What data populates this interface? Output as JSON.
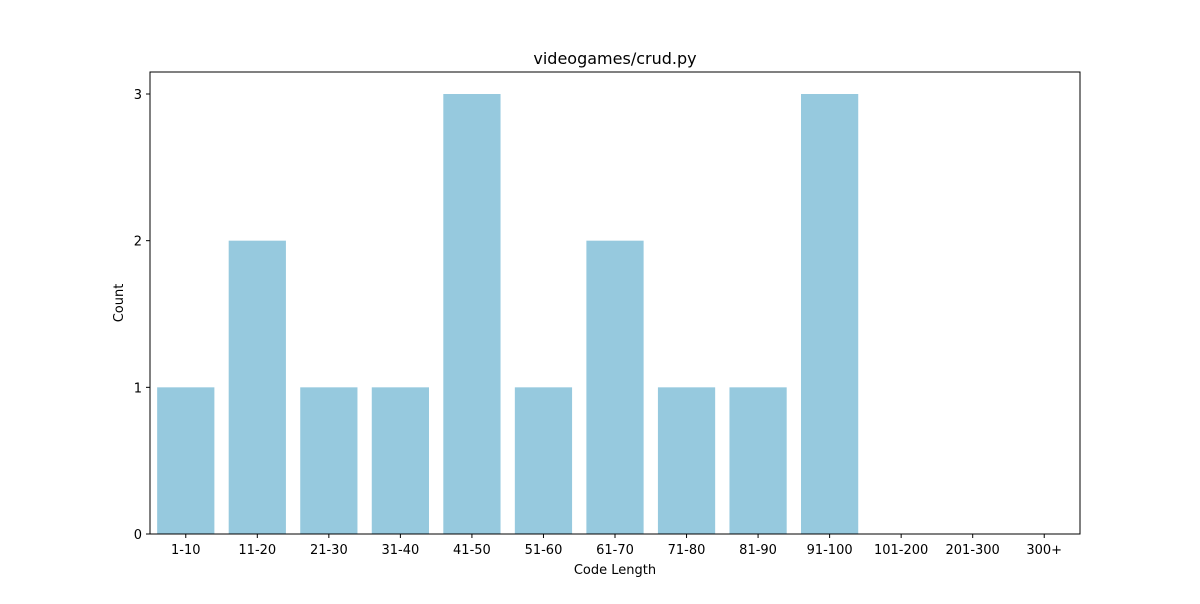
{
  "chart_data": {
    "type": "bar",
    "title": "videogames/crud.py",
    "xlabel": "Code Length",
    "ylabel": "Count",
    "categories": [
      "1-10",
      "11-20",
      "21-30",
      "31-40",
      "41-50",
      "51-60",
      "61-70",
      "71-80",
      "81-90",
      "91-100",
      "101-200",
      "201-300",
      "300+"
    ],
    "values": [
      1,
      2,
      1,
      1,
      3,
      1,
      2,
      1,
      1,
      3,
      0,
      0,
      0
    ],
    "ylim": [
      0,
      3.15
    ],
    "yticks": [
      0,
      1,
      2,
      3
    ],
    "grid": false,
    "bar_color": "#96c9de"
  }
}
